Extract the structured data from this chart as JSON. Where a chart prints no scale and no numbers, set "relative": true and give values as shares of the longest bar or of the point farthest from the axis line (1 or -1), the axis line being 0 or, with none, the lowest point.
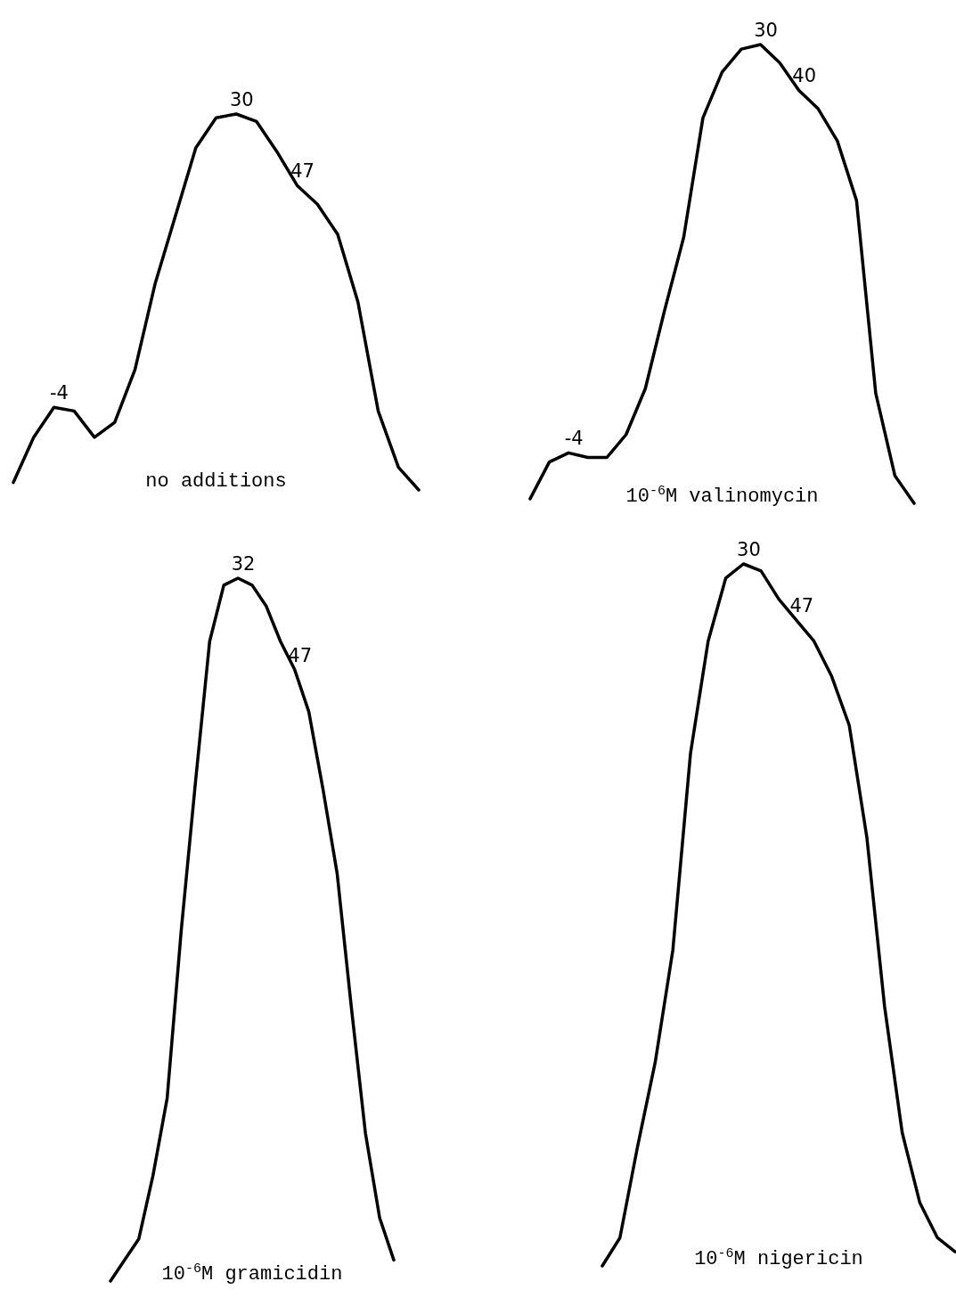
{
  "chart_data": [
    {
      "type": "line",
      "relative": true,
      "xlabel": "no additions",
      "categories": [
        null,
        null,
        null,
        null,
        null,
        null,
        null,
        null,
        null,
        null,
        null,
        null,
        null,
        null,
        null,
        null,
        null,
        null,
        null,
        null,
        null
      ],
      "series": [
        {
          "color": "#000000",
          "values": [
            0.02,
            0.14,
            0.22,
            0.21,
            0.14,
            0.18,
            0.32,
            0.55,
            0.73,
            0.91,
            0.99,
            1,
            0.98,
            0.9,
            0.81,
            0.76,
            0.68,
            0.5,
            0.21,
            0.06,
            0
          ]
        }
      ],
      "annotations": [
        {
          "text": "-4",
          "y": 0.22
        },
        {
          "text": "30",
          "y": 1
        },
        {
          "text": "47",
          "y": 0.81
        }
      ]
    },
    {
      "type": "line",
      "relative": true,
      "xlabel": "10$^{-6}$M valinomycin",
      "categories": [
        null,
        null,
        null,
        null,
        null,
        null,
        null,
        null,
        null,
        null,
        null,
        null,
        null,
        null,
        null,
        null,
        null,
        null,
        null,
        null,
        null
      ],
      "series": [
        {
          "color": "#000000",
          "values": [
            0.01,
            0.09,
            0.11,
            0.1,
            0.1,
            0.15,
            0.25,
            0.42,
            0.58,
            0.84,
            0.94,
            0.99,
            1,
            0.96,
            0.9,
            0.86,
            0.79,
            0.66,
            0.24,
            0.06,
            0
          ]
        }
      ],
      "annotations": [
        {
          "text": "-4",
          "y": 0.11
        },
        {
          "text": "30",
          "y": 1
        },
        {
          "text": "40",
          "y": 0.9
        }
      ]
    },
    {
      "type": "line",
      "relative": true,
      "xlabel": "10$^{-6}$M gramicidin",
      "categories": [
        null,
        null,
        null,
        null,
        null,
        null,
        null,
        null,
        null,
        null,
        null,
        null,
        null,
        null,
        null,
        null,
        null,
        null,
        null,
        null,
        null
      ],
      "series": [
        {
          "color": "#000000",
          "values": [
            0,
            0.03,
            0.06,
            0.15,
            0.26,
            0.5,
            0.71,
            0.91,
            0.99,
            1,
            0.99,
            0.96,
            0.91,
            0.87,
            0.81,
            0.7,
            0.58,
            0.39,
            0.21,
            0.09,
            0.03
          ]
        }
      ],
      "annotations": [
        {
          "text": "32",
          "y": 1
        },
        {
          "text": "47",
          "y": 0.87
        }
      ]
    },
    {
      "type": "line",
      "relative": true,
      "xlabel": "10$^{-6}$M nigericin",
      "categories": [
        null,
        null,
        null,
        null,
        null,
        null,
        null,
        null,
        null,
        null,
        null,
        null,
        null,
        null,
        null,
        null,
        null,
        null,
        null,
        null,
        null
      ],
      "series": [
        {
          "color": "#000000",
          "values": [
            0,
            0.04,
            0.17,
            0.29,
            0.45,
            0.73,
            0.89,
            0.98,
            1,
            0.99,
            0.95,
            0.92,
            0.89,
            0.84,
            0.77,
            0.61,
            0.37,
            0.19,
            0.09,
            0.04,
            0.02
          ]
        }
      ],
      "annotations": [
        {
          "text": "30",
          "y": 1
        },
        {
          "text": "47",
          "y": 0.92
        }
      ]
    }
  ]
}
